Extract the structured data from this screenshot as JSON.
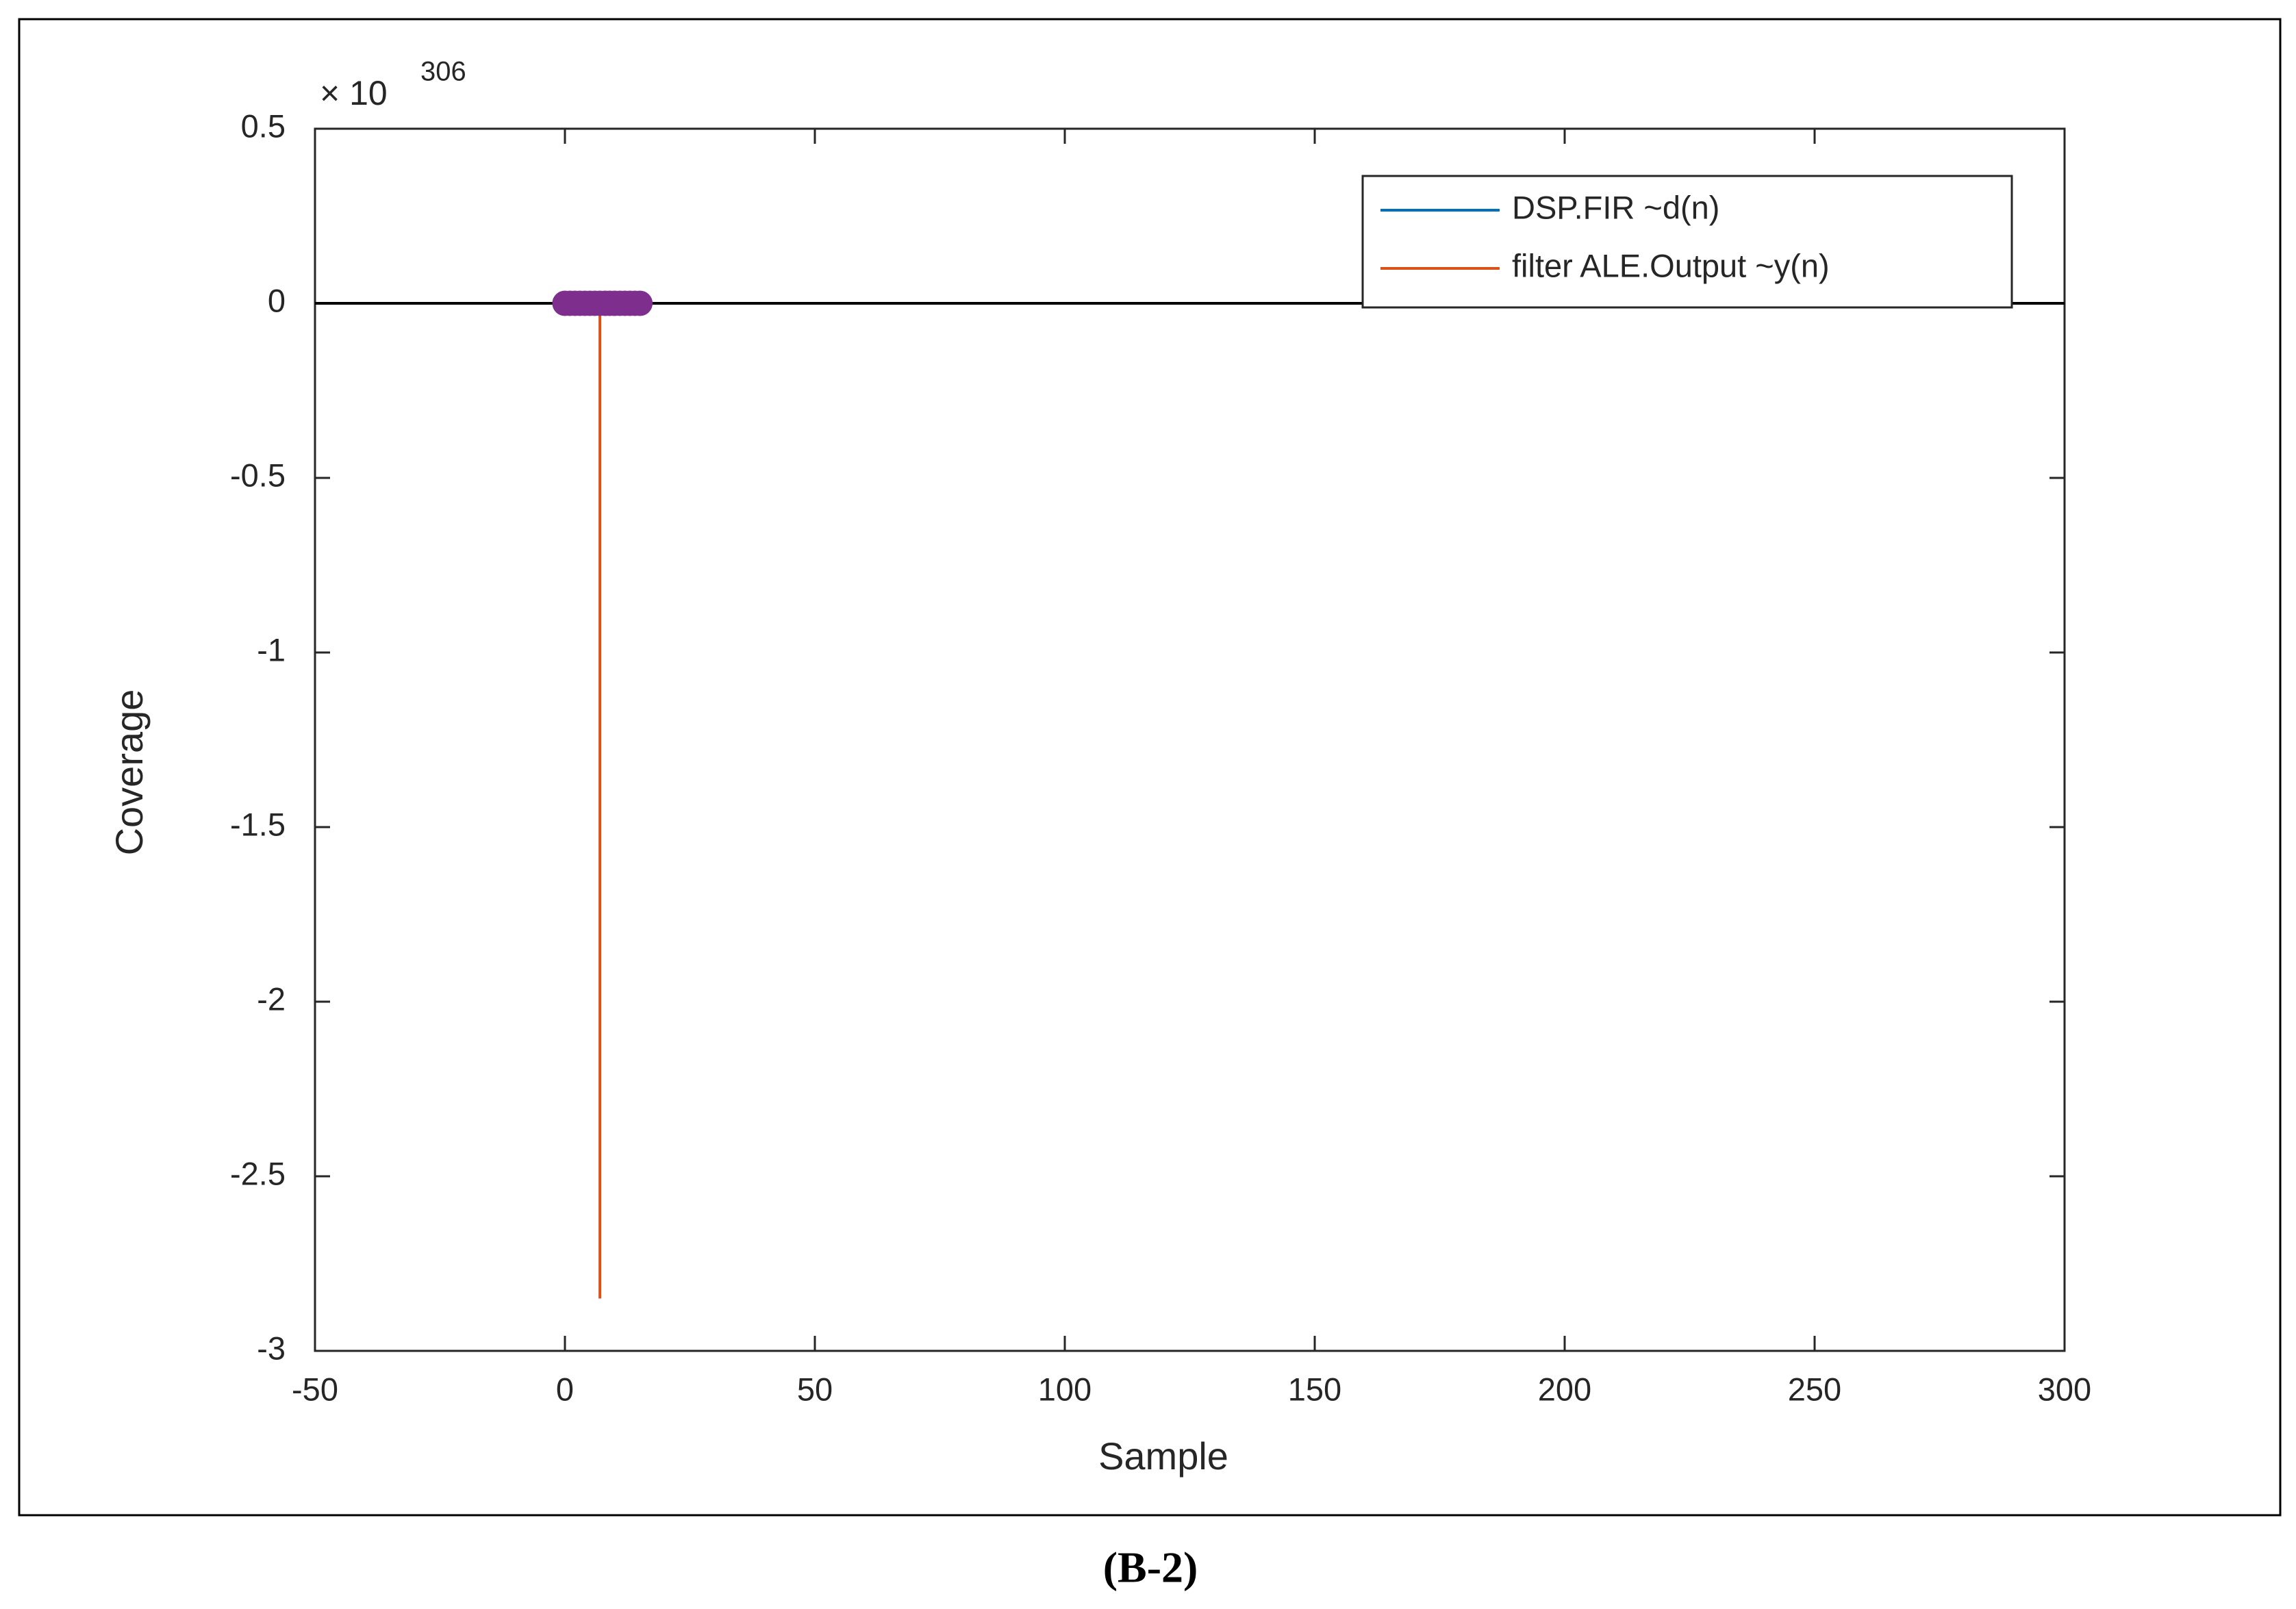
{
  "chart_data": {
    "type": "stem",
    "caption": "(B-2)",
    "xlabel": "Sample",
    "ylabel": "Coverage",
    "y_multiplier": {
      "base": "× 10",
      "exponent": "306"
    },
    "x": [
      0,
      1,
      2,
      3,
      4,
      5,
      6,
      7,
      8,
      9,
      10,
      11,
      12,
      13,
      14,
      15
    ],
    "series": [
      {
        "name": "DSP.FIR ~d(n)",
        "color": "#0072bd",
        "marker_color": "#7e2f8e",
        "values": [
          0,
          0,
          0,
          0,
          0,
          0,
          0,
          0,
          0,
          0,
          0,
          0,
          0,
          0,
          0,
          0
        ]
      },
      {
        "name": "filter ALE.Output ~y(n)",
        "color": "#d95319",
        "values": [
          0,
          0,
          0,
          0,
          0,
          0,
          0,
          -2.85,
          0,
          0,
          0,
          0,
          0,
          0,
          0,
          0
        ]
      }
    ],
    "xlim": [
      -50,
      300
    ],
    "xticks": [
      -50,
      0,
      50,
      100,
      150,
      200,
      250,
      300
    ],
    "ylim": [
      -3,
      0.5
    ],
    "yticks": [
      0.5,
      0,
      -0.5,
      -1,
      -1.5,
      -2,
      -2.5,
      -3
    ],
    "grid": false,
    "legend": "top-right"
  }
}
